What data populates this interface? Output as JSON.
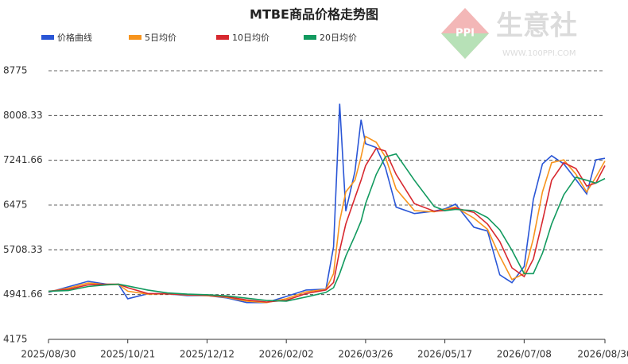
{
  "chart_data": {
    "type": "line",
    "title": "MTBE商品价格走势图",
    "x": [
      "2025/08/30",
      "2025/09/12",
      "2025/09/25",
      "2025/10/08",
      "2025/10/15",
      "2025/10/21",
      "2025/11/03",
      "2025/11/16",
      "2025/11/29",
      "2025/12/12",
      "2025/12/25",
      "2026/01/07",
      "2026/01/20",
      "2026/02/02",
      "2026/02/15",
      "2026/02/28",
      "2026/03/05",
      "2026/03/09",
      "2026/03/13",
      "2026/03/19",
      "2026/03/23",
      "2026/03/26",
      "2026/04/02",
      "2026/04/08",
      "2026/04/15",
      "2026/04/27",
      "2026/05/10",
      "2026/05/17",
      "2026/05/24",
      "2026/06/05",
      "2026/06/14",
      "2026/06/22",
      "2026/06/30",
      "2026/07/08",
      "2026/07/14",
      "2026/07/20",
      "2026/07/26",
      "2026/08/03",
      "2026/08/11",
      "2026/08/18",
      "2026/08/24",
      "2026/08/30"
    ],
    "series": [
      {
        "name": "价格曲线",
        "color": "#2a56d6",
        "values": [
          4980,
          5075,
          5170,
          5115,
          5115,
          4870,
          4955,
          4955,
          4925,
          4925,
          4885,
          4805,
          4805,
          4910,
          5020,
          5035,
          5760,
          8210,
          6370,
          7050,
          7935,
          7525,
          7460,
          7120,
          6440,
          6330,
          6370,
          6410,
          6490,
          6095,
          6030,
          5280,
          5145,
          5425,
          6570,
          7180,
          7320,
          7180,
          6910,
          6665,
          7250,
          7275
        ]
      },
      {
        "name": "5日均价",
        "color": "#f7941d",
        "values": [
          4990,
          5050,
          5140,
          5110,
          5115,
          5000,
          4950,
          4955,
          4935,
          4925,
          4895,
          4830,
          4805,
          4870,
          4990,
          5030,
          5300,
          6200,
          6700,
          6900,
          7300,
          7650,
          7550,
          7300,
          6750,
          6380,
          6360,
          6400,
          6440,
          6250,
          6060,
          5600,
          5200,
          5300,
          5900,
          6700,
          7200,
          7250,
          7000,
          6700,
          6950,
          7230
        ]
      },
      {
        "name": "10日均价",
        "color": "#d7282f",
        "values": [
          5000,
          5030,
          5110,
          5120,
          5120,
          5060,
          4960,
          4955,
          4940,
          4930,
          4905,
          4850,
          4815,
          4845,
          4960,
          5020,
          5150,
          5700,
          6150,
          6600,
          6900,
          7150,
          7450,
          7400,
          7000,
          6500,
          6370,
          6380,
          6420,
          6350,
          6150,
          5850,
          5400,
          5250,
          5550,
          6200,
          6900,
          7200,
          7100,
          6800,
          6850,
          7150
        ]
      },
      {
        "name": "20日均价",
        "color": "#129a5f",
        "values": [
          5000,
          5010,
          5080,
          5110,
          5120,
          5090,
          5020,
          4970,
          4950,
          4940,
          4920,
          4880,
          4840,
          4830,
          4900,
          4980,
          5060,
          5300,
          5600,
          5950,
          6200,
          6500,
          7000,
          7300,
          7350,
          6900,
          6450,
          6380,
          6400,
          6380,
          6260,
          6050,
          5700,
          5300,
          5300,
          5650,
          6150,
          6650,
          6950,
          6900,
          6850,
          6930
        ]
      }
    ],
    "xlim": [
      "2025/08/30",
      "2026/08/30"
    ],
    "xticks": [
      "2025/08/30",
      "2025/10/21",
      "2025/12/12",
      "2026/02/02",
      "2026/03/26",
      "2026/05/17",
      "2026/07/08",
      "2026/08/30"
    ],
    "ylim": [
      4175,
      8775
    ],
    "yticks": [
      4175,
      4941.66,
      5708.33,
      6475,
      7241.66,
      8008.33,
      8775
    ],
    "grid": true,
    "legend": "top-left"
  },
  "logo": {
    "name": "生意社",
    "url": "WWW.100PPI.COM",
    "badge": "PPI"
  }
}
